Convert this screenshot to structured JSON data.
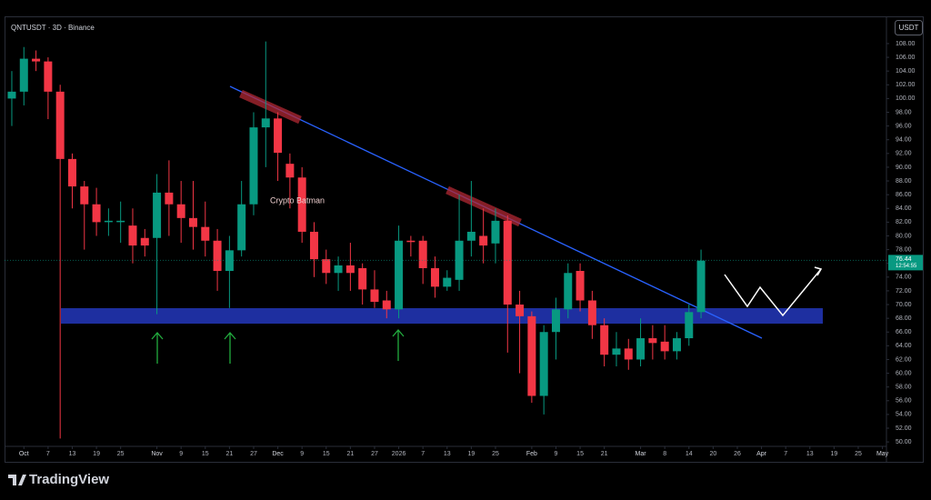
{
  "header": "QNTUSDT · 3D · Binance",
  "currency": "USDT",
  "footer": "TradingView",
  "chart_data": {
    "type": "candlestick",
    "annotation": "Crypto Batman",
    "up_color": "#089981",
    "down_color": "#f23645",
    "x": [
      0,
      3,
      6,
      9,
      12,
      15,
      18,
      21,
      24,
      27,
      30,
      33,
      36,
      39,
      42,
      45,
      48,
      51,
      54,
      57,
      60,
      63,
      66,
      69,
      72,
      75,
      78,
      81,
      84,
      87,
      90,
      93,
      96,
      99,
      102,
      105,
      108,
      111,
      114,
      117,
      120,
      123,
      126,
      129,
      132,
      135,
      138,
      141,
      144,
      147,
      150,
      153,
      156,
      159,
      162,
      165,
      168,
      171
    ],
    "open": [
      100,
      101,
      105.8,
      105.4,
      101,
      91.2,
      87.2,
      84.6,
      82,
      82,
      81.5,
      79.7,
      79.7,
      86.3,
      84.6,
      82.6,
      81.3,
      79.3,
      74.9,
      77.9,
      84.6,
      95.8,
      97.1,
      90.5,
      88.5,
      80.6,
      76.6,
      74.6,
      75.7,
      75.3,
      72.2,
      70.6,
      69.3,
      79.3,
      79.3,
      75.3,
      72.6,
      73.6,
      79.3,
      80,
      78.9,
      82.2,
      70,
      68.3,
      56.7,
      66,
      69.3,
      74.9,
      70.6,
      67,
      62.7,
      63.6,
      62,
      65.1,
      64.6,
      63.2,
      65.1,
      68.9
    ],
    "high": [
      104,
      107.5,
      107,
      106,
      102,
      92,
      88,
      87,
      84,
      85,
      84,
      81,
      89,
      91,
      88,
      88,
      85,
      81,
      80,
      88,
      98,
      108.3,
      98,
      92,
      90,
      82,
      78,
      77,
      79,
      76,
      75,
      72,
      81.5,
      80,
      80,
      77,
      75,
      86,
      88,
      84,
      84,
      83,
      72,
      69,
      67,
      71,
      76,
      76,
      72,
      68,
      66,
      65,
      68,
      67,
      67,
      66,
      70,
      78
    ],
    "low": [
      96,
      99,
      104,
      97,
      50.5,
      84,
      78,
      80,
      80,
      79,
      76,
      77,
      68.6,
      80,
      79,
      78,
      77,
      72,
      69.5,
      77,
      83,
      90,
      88,
      84,
      79,
      74,
      73,
      72,
      72,
      70,
      69.5,
      68,
      68,
      77,
      73,
      71,
      72,
      72,
      77,
      76,
      76,
      63,
      60,
      55.7,
      54,
      62,
      68,
      69,
      65,
      61,
      61,
      60.5,
      61,
      62,
      62,
      62,
      64,
      68
    ],
    "close": [
      101,
      105.8,
      105.4,
      101,
      91.2,
      87.2,
      84.6,
      82,
      82.2,
      82.2,
      78.6,
      78.6,
      86.3,
      84.6,
      82.6,
      81.3,
      79.3,
      74.9,
      77.9,
      84.6,
      95.8,
      97.1,
      92.1,
      88.5,
      80.6,
      76.6,
      74.6,
      75.7,
      74.6,
      72.2,
      70.4,
      69.3,
      79.3,
      79.1,
      75.3,
      72.6,
      73.9,
      79.3,
      80.6,
      78.6,
      82.2,
      70,
      68.3,
      56.7,
      66,
      69.3,
      74.6,
      70.6,
      67,
      62.7,
      63.6,
      62,
      65.1,
      64.4,
      63.2,
      65.1,
      68.9,
      76.4
    ],
    "last_price": {
      "value": 76.44,
      "countdown": "12:54:55"
    },
    "xlim": [
      -1.8,
      217
    ],
    "ylim": [
      47.5,
      111.7
    ],
    "xticks": [
      {
        "value": 3,
        "label": "Oct"
      },
      {
        "value": 9,
        "label": "7"
      },
      {
        "value": 15,
        "label": "13"
      },
      {
        "value": 21,
        "label": "19"
      },
      {
        "value": 27,
        "label": "25"
      },
      {
        "value": 36,
        "label": "Nov"
      },
      {
        "value": 42,
        "label": "9"
      },
      {
        "value": 48,
        "label": "15"
      },
      {
        "value": 54,
        "label": "21"
      },
      {
        "value": 60,
        "label": "27"
      },
      {
        "value": 66,
        "label": "Dec"
      },
      {
        "value": 72,
        "label": "9"
      },
      {
        "value": 78,
        "label": "15"
      },
      {
        "value": 84,
        "label": "21"
      },
      {
        "value": 90,
        "label": "27"
      },
      {
        "value": 96,
        "label": "2026"
      },
      {
        "value": 102,
        "label": "7"
      },
      {
        "value": 108,
        "label": "13"
      },
      {
        "value": 114,
        "label": "19"
      },
      {
        "value": 120,
        "label": "25"
      },
      {
        "value": 129,
        "label": "Feb"
      },
      {
        "value": 135,
        "label": "9"
      },
      {
        "value": 141,
        "label": "15"
      },
      {
        "value": 147,
        "label": "21"
      },
      {
        "value": 156,
        "label": "Mar"
      },
      {
        "value": 162,
        "label": "8"
      },
      {
        "value": 168,
        "label": "14"
      },
      {
        "value": 174,
        "label": "20"
      },
      {
        "value": 180,
        "label": "26"
      },
      {
        "value": 186,
        "label": "Apr"
      },
      {
        "value": 192,
        "label": "7"
      },
      {
        "value": 198,
        "label": "13"
      },
      {
        "value": 204,
        "label": "19"
      },
      {
        "value": 210,
        "label": "25"
      },
      {
        "value": 216,
        "label": "May"
      }
    ],
    "yticks": [
      {
        "value": 50,
        "label": "50.00"
      },
      {
        "value": 52,
        "label": "52.00"
      },
      {
        "value": 54,
        "label": "54.00"
      },
      {
        "value": 56,
        "label": "56.00"
      },
      {
        "value": 58,
        "label": "58.00"
      },
      {
        "value": 60,
        "label": "60.00"
      },
      {
        "value": 62,
        "label": "62.00"
      },
      {
        "value": 64,
        "label": "64.00"
      },
      {
        "value": 66,
        "label": "66.00"
      },
      {
        "value": 68,
        "label": "68.00"
      },
      {
        "value": 70,
        "label": "70.00"
      },
      {
        "value": 72,
        "label": "72.00"
      },
      {
        "value": 74,
        "label": "74.00"
      },
      {
        "value": 76,
        "label": "76.00"
      },
      {
        "value": 78,
        "label": "78.00"
      },
      {
        "value": 80,
        "label": "80.00"
      },
      {
        "value": 82,
        "label": "82.00"
      },
      {
        "value": 84,
        "label": "84.00"
      },
      {
        "value": 86,
        "label": "86.00"
      },
      {
        "value": 88,
        "label": "88.00"
      },
      {
        "value": 90,
        "label": "90.00"
      },
      {
        "value": 92,
        "label": "92.00"
      },
      {
        "value": 94,
        "label": "94.00"
      },
      {
        "value": 96,
        "label": "96.00"
      },
      {
        "value": 98,
        "label": "98.00"
      },
      {
        "value": 100,
        "label": "100.00"
      },
      {
        "value": 102,
        "label": "102.00"
      },
      {
        "value": 104,
        "label": "104.00"
      },
      {
        "value": 106,
        "label": "106.00"
      },
      {
        "value": 108,
        "label": "108.00"
      }
    ]
  }
}
